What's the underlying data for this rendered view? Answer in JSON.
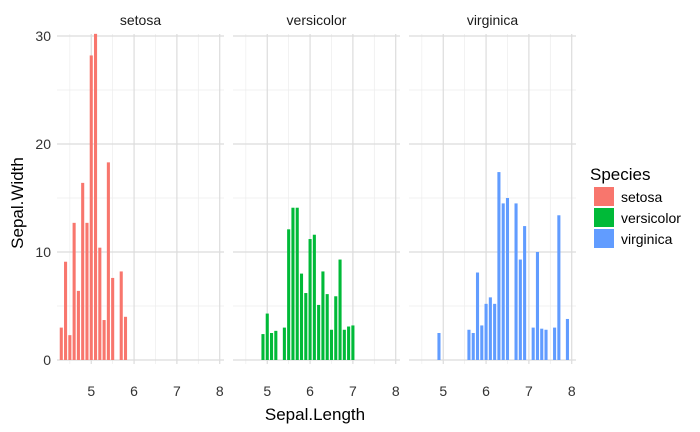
{
  "chart_data": {
    "type": "bar",
    "xlabel": "Sepal.Length",
    "ylabel": "Sepal.Width",
    "x_ticks": [
      5,
      6,
      7,
      8
    ],
    "y_ticks": [
      0,
      10,
      20,
      30
    ],
    "x_range": [
      4.2,
      8.1
    ],
    "y_range": [
      0,
      30
    ],
    "grid": true,
    "legend": {
      "title": "Species",
      "placement": "right",
      "items": [
        {
          "label": "setosa",
          "color": "#F8766D"
        },
        {
          "label": "versicolor",
          "color": "#00BA38"
        },
        {
          "label": "virginica",
          "color": "#619CFF"
        }
      ]
    },
    "facets": [
      {
        "label": "setosa",
        "color": "#F8766D",
        "bars": [
          {
            "x": 4.3,
            "y": 3.0
          },
          {
            "x": 4.4,
            "y": 9.1
          },
          {
            "x": 4.5,
            "y": 2.3
          },
          {
            "x": 4.6,
            "y": 12.7
          },
          {
            "x": 4.7,
            "y": 6.4
          },
          {
            "x": 4.8,
            "y": 16.4
          },
          {
            "x": 4.9,
            "y": 12.7
          },
          {
            "x": 5.0,
            "y": 28.2
          },
          {
            "x": 5.1,
            "y": 30.2
          },
          {
            "x": 5.2,
            "y": 10.4
          },
          {
            "x": 5.3,
            "y": 3.7
          },
          {
            "x": 5.4,
            "y": 18.3
          },
          {
            "x": 5.5,
            "y": 7.6
          },
          {
            "x": 5.7,
            "y": 8.2
          },
          {
            "x": 5.8,
            "y": 4.0
          }
        ]
      },
      {
        "label": "versicolor",
        "color": "#00BA38",
        "bars": [
          {
            "x": 4.9,
            "y": 2.4
          },
          {
            "x": 5.0,
            "y": 4.3
          },
          {
            "x": 5.1,
            "y": 2.5
          },
          {
            "x": 5.2,
            "y": 2.7
          },
          {
            "x": 5.4,
            "y": 3.0
          },
          {
            "x": 5.5,
            "y": 12.1
          },
          {
            "x": 5.6,
            "y": 14.1
          },
          {
            "x": 5.7,
            "y": 14.1
          },
          {
            "x": 5.8,
            "y": 8.0
          },
          {
            "x": 5.9,
            "y": 6.2
          },
          {
            "x": 6.0,
            "y": 11.2
          },
          {
            "x": 6.1,
            "y": 11.6
          },
          {
            "x": 6.2,
            "y": 5.1
          },
          {
            "x": 6.3,
            "y": 8.2
          },
          {
            "x": 6.4,
            "y": 6.1
          },
          {
            "x": 6.5,
            "y": 2.8
          },
          {
            "x": 6.6,
            "y": 5.9
          },
          {
            "x": 6.7,
            "y": 9.3
          },
          {
            "x": 6.8,
            "y": 2.8
          },
          {
            "x": 6.9,
            "y": 3.1
          },
          {
            "x": 7.0,
            "y": 3.2
          }
        ]
      },
      {
        "label": "virginica",
        "color": "#619CFF",
        "bars": [
          {
            "x": 4.9,
            "y": 2.5
          },
          {
            "x": 5.6,
            "y": 2.8
          },
          {
            "x": 5.7,
            "y": 2.5
          },
          {
            "x": 5.8,
            "y": 8.1
          },
          {
            "x": 5.9,
            "y": 3.2
          },
          {
            "x": 6.0,
            "y": 5.2
          },
          {
            "x": 6.1,
            "y": 5.8
          },
          {
            "x": 6.2,
            "y": 5.2
          },
          {
            "x": 6.3,
            "y": 17.4
          },
          {
            "x": 6.4,
            "y": 14.5
          },
          {
            "x": 6.5,
            "y": 15.0
          },
          {
            "x": 6.7,
            "y": 14.5
          },
          {
            "x": 6.8,
            "y": 9.3
          },
          {
            "x": 6.9,
            "y": 12.4
          },
          {
            "x": 7.1,
            "y": 3.0
          },
          {
            "x": 7.2,
            "y": 10.0
          },
          {
            "x": 7.3,
            "y": 2.9
          },
          {
            "x": 7.4,
            "y": 2.8
          },
          {
            "x": 7.6,
            "y": 3.0
          },
          {
            "x": 7.7,
            "y": 13.4
          },
          {
            "x": 7.9,
            "y": 3.8
          }
        ]
      }
    ]
  }
}
